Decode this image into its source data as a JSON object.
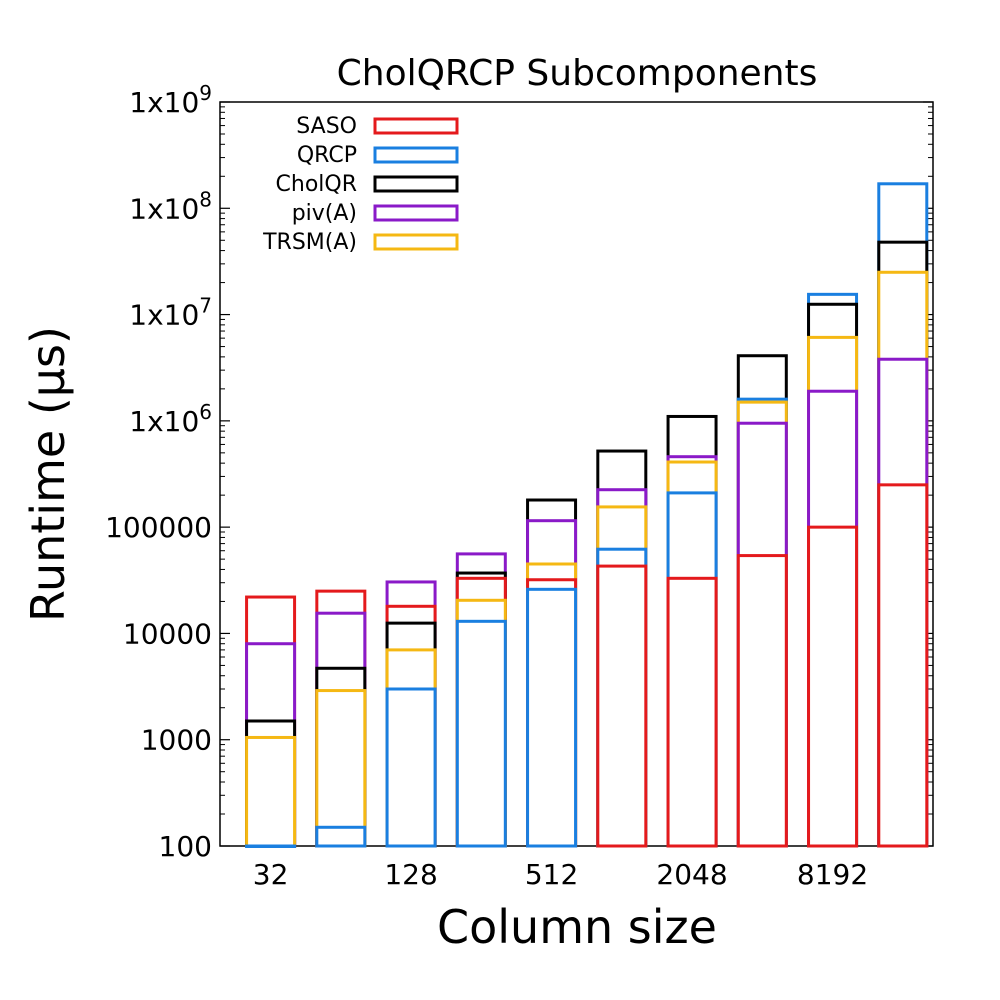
{
  "chart_data": {
    "type": "bar",
    "title": "CholQRCP Subcomponents",
    "xlabel": "Column size",
    "ylabel": "Runtime (µs)",
    "yscale": "log",
    "ylim": [
      100,
      1000000000
    ],
    "grid": false,
    "legend_position": "top-left",
    "x": [
      32,
      64,
      128,
      256,
      512,
      1024,
      2048,
      4096,
      8192,
      16384
    ],
    "x_tick_labels_shown": [
      "32",
      "",
      "128",
      "",
      "512",
      "",
      "2048",
      "",
      "8192",
      ""
    ],
    "y_tick_labels": [
      "100",
      "1000",
      "10000",
      "100000",
      "1x10^6",
      "1x10^7",
      "1x10^8",
      "1x10^9"
    ],
    "series": [
      {
        "name": "SASO",
        "color": "#e41a1c",
        "values": [
          22000,
          25000,
          18000,
          33000,
          32000,
          43000,
          33000,
          54000,
          100000,
          250000
        ]
      },
      {
        "name": "QRCP",
        "color": "#1a7fe0",
        "values": [
          100,
          150,
          3000,
          13000,
          26000,
          62000,
          210000,
          1600000,
          15500000,
          170000000
        ]
      },
      {
        "name": "CholQR",
        "color": "#000000",
        "values": [
          1500,
          4700,
          12500,
          37000,
          180000,
          520000,
          1100000,
          4100000,
          12500000,
          48000000
        ]
      },
      {
        "name": "piv(A)",
        "color": "#8a1ac8",
        "values": [
          8000,
          15500,
          30500,
          56000,
          115000,
          225000,
          460000,
          950000,
          1900000,
          3800000
        ]
      },
      {
        "name": "TRSM(A)",
        "color": "#f5b813",
        "values": [
          1050,
          2900,
          7000,
          20500,
          45000,
          155000,
          410000,
          1500000,
          6100000,
          25000000
        ]
      }
    ]
  }
}
